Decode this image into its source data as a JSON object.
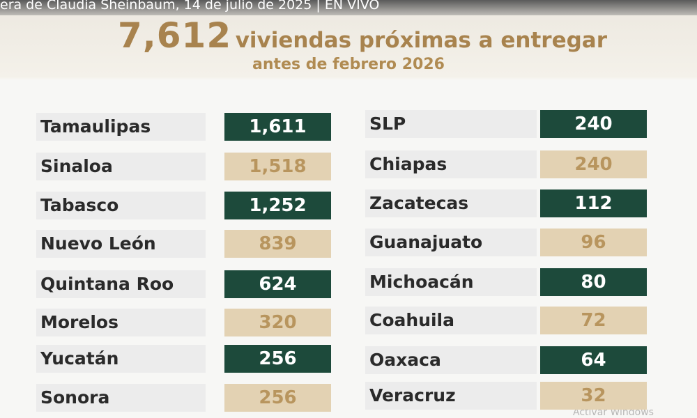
{
  "video_title": "era de Claudia Sheinbaum, 14 de julio de 2025 | EN VIVO",
  "headline": {
    "total": "7,612",
    "text": "viviendas próximas a entregar",
    "subtitle": "antes de febrero 2026"
  },
  "table": {
    "columns": [
      [
        {
          "state": "Tamaulipas",
          "value": "1,611"
        },
        {
          "state": "Sinaloa",
          "value": "1,518"
        },
        {
          "state": "Tabasco",
          "value": "1,252"
        },
        {
          "state": "Nuevo León",
          "value": "839"
        },
        {
          "state": "Quintana Roo",
          "value": "624"
        },
        {
          "state": "Morelos",
          "value": "320"
        },
        {
          "state": "Yucatán",
          "value": "256"
        },
        {
          "state": "Sonora",
          "value": "256"
        }
      ],
      [
        {
          "state": "SLP",
          "value": "240"
        },
        {
          "state": "Chiapas",
          "value": "240"
        },
        {
          "state": "Zacatecas",
          "value": "112"
        },
        {
          "state": "Guanajuato",
          "value": "96"
        },
        {
          "state": "Michoacán",
          "value": "80"
        },
        {
          "state": "Coahuila",
          "value": "72"
        },
        {
          "state": "Oaxaca",
          "value": "64"
        },
        {
          "state": "Veracruz",
          "value": "32"
        }
      ]
    ]
  },
  "watermark": "Activar Windows"
}
